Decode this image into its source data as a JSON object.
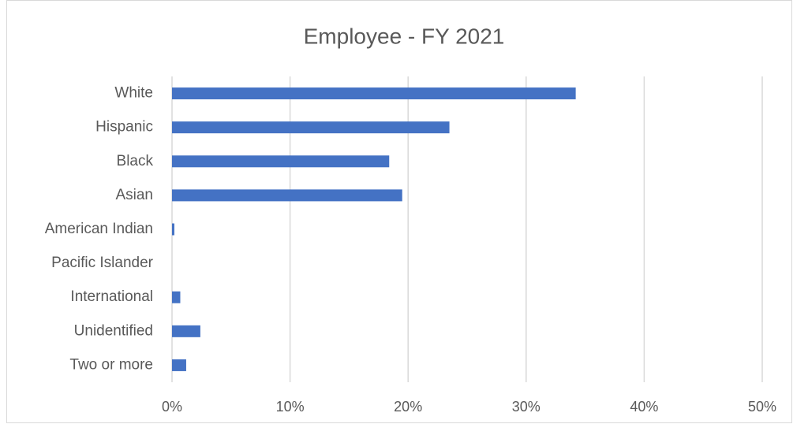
{
  "chart_data": {
    "type": "bar",
    "orientation": "horizontal",
    "title": "Employee - FY 2021",
    "categories": [
      "White",
      "Hispanic",
      "Black",
      "Asian",
      "American Indian",
      "Pacific Islander",
      "International",
      "Unidentified",
      "Two or more"
    ],
    "values": [
      34.2,
      23.5,
      18.4,
      19.5,
      0.2,
      0,
      0.7,
      2.4,
      1.2
    ],
    "color": "#4472c4",
    "xlim": [
      0,
      50
    ],
    "xticks": [
      {
        "value": 0,
        "label": "0%"
      },
      {
        "value": 10,
        "label": "10%"
      },
      {
        "value": 20,
        "label": "20%"
      },
      {
        "value": 30,
        "label": "30%"
      },
      {
        "value": 40,
        "label": "40%"
      },
      {
        "value": 50,
        "label": "50%"
      }
    ],
    "grid": true
  }
}
